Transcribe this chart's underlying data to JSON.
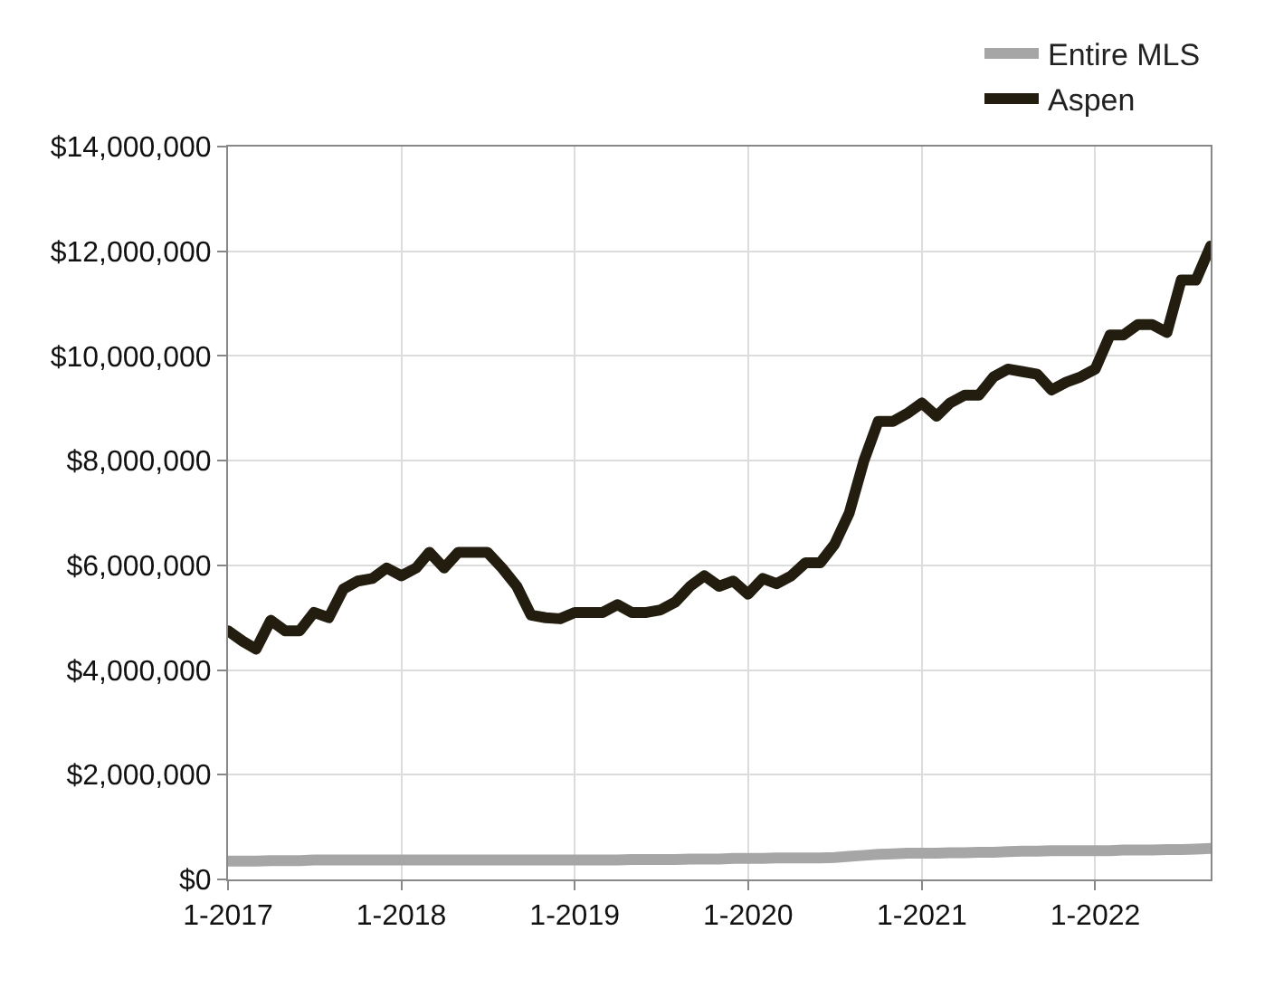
{
  "chart_data": {
    "type": "line",
    "x": [
      "2017-01",
      "2017-02",
      "2017-03",
      "2017-04",
      "2017-05",
      "2017-06",
      "2017-07",
      "2017-08",
      "2017-09",
      "2017-10",
      "2017-11",
      "2017-12",
      "2018-01",
      "2018-02",
      "2018-03",
      "2018-04",
      "2018-05",
      "2018-06",
      "2018-07",
      "2018-08",
      "2018-09",
      "2018-10",
      "2018-11",
      "2018-12",
      "2019-01",
      "2019-02",
      "2019-03",
      "2019-04",
      "2019-05",
      "2019-06",
      "2019-07",
      "2019-08",
      "2019-09",
      "2019-10",
      "2019-11",
      "2019-12",
      "2020-01",
      "2020-02",
      "2020-03",
      "2020-04",
      "2020-05",
      "2020-06",
      "2020-07",
      "2020-08",
      "2020-09",
      "2020-10",
      "2020-11",
      "2020-12",
      "2021-01",
      "2021-02",
      "2021-03",
      "2021-04",
      "2021-05",
      "2021-06",
      "2021-07",
      "2021-08",
      "2021-09",
      "2021-10",
      "2021-11",
      "2021-12",
      "2022-01",
      "2022-02",
      "2022-03",
      "2022-04",
      "2022-05",
      "2022-06",
      "2022-07",
      "2022-08",
      "2022-09"
    ],
    "series": [
      {
        "name": "Entire MLS",
        "color": "#a6a6a6",
        "values": [
          350000,
          350000,
          350000,
          360000,
          360000,
          360000,
          370000,
          370000,
          370000,
          370000,
          370000,
          370000,
          370000,
          370000,
          370000,
          370000,
          370000,
          370000,
          370000,
          370000,
          370000,
          370000,
          370000,
          370000,
          370000,
          370000,
          370000,
          370000,
          380000,
          380000,
          380000,
          380000,
          390000,
          390000,
          390000,
          400000,
          400000,
          400000,
          410000,
          410000,
          410000,
          410000,
          420000,
          440000,
          460000,
          480000,
          490000,
          500000,
          500000,
          500000,
          510000,
          510000,
          520000,
          520000,
          530000,
          540000,
          540000,
          550000,
          550000,
          550000,
          550000,
          550000,
          560000,
          560000,
          560000,
          570000,
          570000,
          580000,
          590000
        ]
      },
      {
        "name": "Aspen",
        "color": "#231d10",
        "values": [
          4750000,
          4550000,
          4400000,
          4950000,
          4750000,
          4750000,
          5100000,
          5000000,
          5550000,
          5700000,
          5750000,
          5950000,
          5800000,
          5950000,
          6250000,
          5950000,
          6250000,
          6250000,
          6250000,
          5950000,
          5600000,
          5050000,
          5000000,
          4980000,
          5100000,
          5100000,
          5100000,
          5250000,
          5100000,
          5100000,
          5150000,
          5300000,
          5600000,
          5800000,
          5600000,
          5700000,
          5450000,
          5750000,
          5650000,
          5800000,
          6050000,
          6050000,
          6400000,
          7000000,
          8000000,
          8750000,
          8750000,
          8900000,
          9100000,
          8850000,
          9100000,
          9250000,
          9250000,
          9600000,
          9750000,
          9700000,
          9650000,
          9350000,
          9500000,
          9600000,
          9750000,
          10400000,
          10400000,
          10600000,
          10600000,
          10450000,
          11450000,
          11450000,
          12100000
        ]
      }
    ],
    "xlim": [
      "2017-01",
      "2022-09"
    ],
    "xticks": [
      {
        "value": "2017-01",
        "label": "1-2017"
      },
      {
        "value": "2018-01",
        "label": "1-2018"
      },
      {
        "value": "2019-01",
        "label": "1-2019"
      },
      {
        "value": "2020-01",
        "label": "1-2020"
      },
      {
        "value": "2021-01",
        "label": "1-2021"
      },
      {
        "value": "2022-01",
        "label": "1-2022"
      }
    ],
    "ylim": [
      0,
      14000000
    ],
    "yticks": [
      {
        "value": 0,
        "label": "$0"
      },
      {
        "value": 2000000,
        "label": "$2,000,000"
      },
      {
        "value": 4000000,
        "label": "$4,000,000"
      },
      {
        "value": 6000000,
        "label": "$6,000,000"
      },
      {
        "value": 8000000,
        "label": "$8,000,000"
      },
      {
        "value": 10000000,
        "label": "$10,000,000"
      },
      {
        "value": 12000000,
        "label": "$12,000,000"
      },
      {
        "value": 14000000,
        "label": "$14,000,000"
      }
    ],
    "grid": true,
    "legend": "top right",
    "marker": "none",
    "line_style": "solid"
  }
}
